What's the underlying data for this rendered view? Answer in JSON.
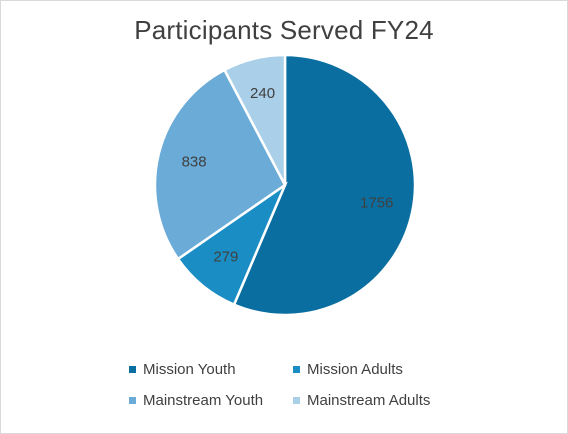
{
  "chart_data": {
    "type": "pie",
    "title": "Participants Served FY24",
    "categories": [
      "Mission Youth",
      "Mission Adults",
      "Mainstream Youth",
      "Mainstream Adults"
    ],
    "values": [
      1756,
      279,
      838,
      240
    ],
    "colors": [
      "#0a6fa0",
      "#1a8ec4",
      "#6aabd8",
      "#a9cfe9"
    ],
    "data_labels": [
      "1756",
      "279",
      "838",
      "240"
    ],
    "start_angle_deg": 0,
    "direction": "clockwise",
    "legend_position": "bottom"
  }
}
